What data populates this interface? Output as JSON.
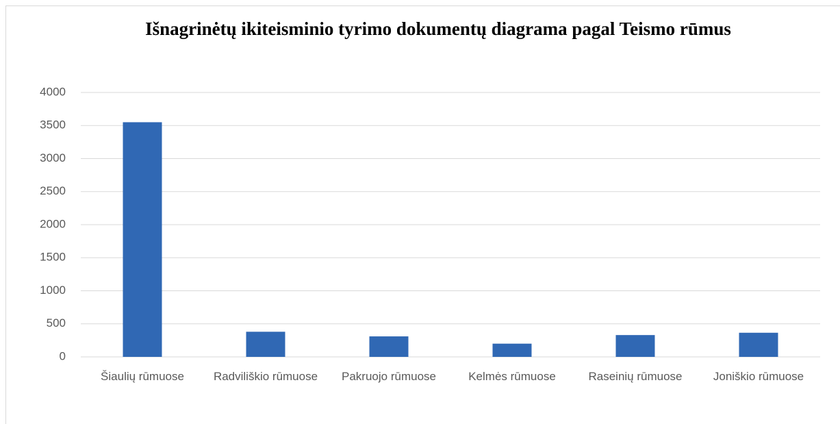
{
  "chart_data": {
    "type": "bar",
    "title": "Išnagrinėtų ikiteisminio tyrimo dokumentų diagrama pagal Teismo rūmus",
    "categories": [
      "Šiaulių rūmuose",
      "Radviliškio rūmuose",
      "Pakruojo rūmuose",
      "Kelmės rūmuose",
      "Raseinių rūmuose",
      "Joniškio rūmuose"
    ],
    "values": [
      3550,
      380,
      310,
      200,
      330,
      365
    ],
    "color": "#3068b4",
    "ylim": [
      0,
      4000
    ],
    "yticks": [
      0,
      500,
      1000,
      1500,
      2000,
      2500,
      3000,
      3500,
      4000
    ],
    "grid": true
  }
}
